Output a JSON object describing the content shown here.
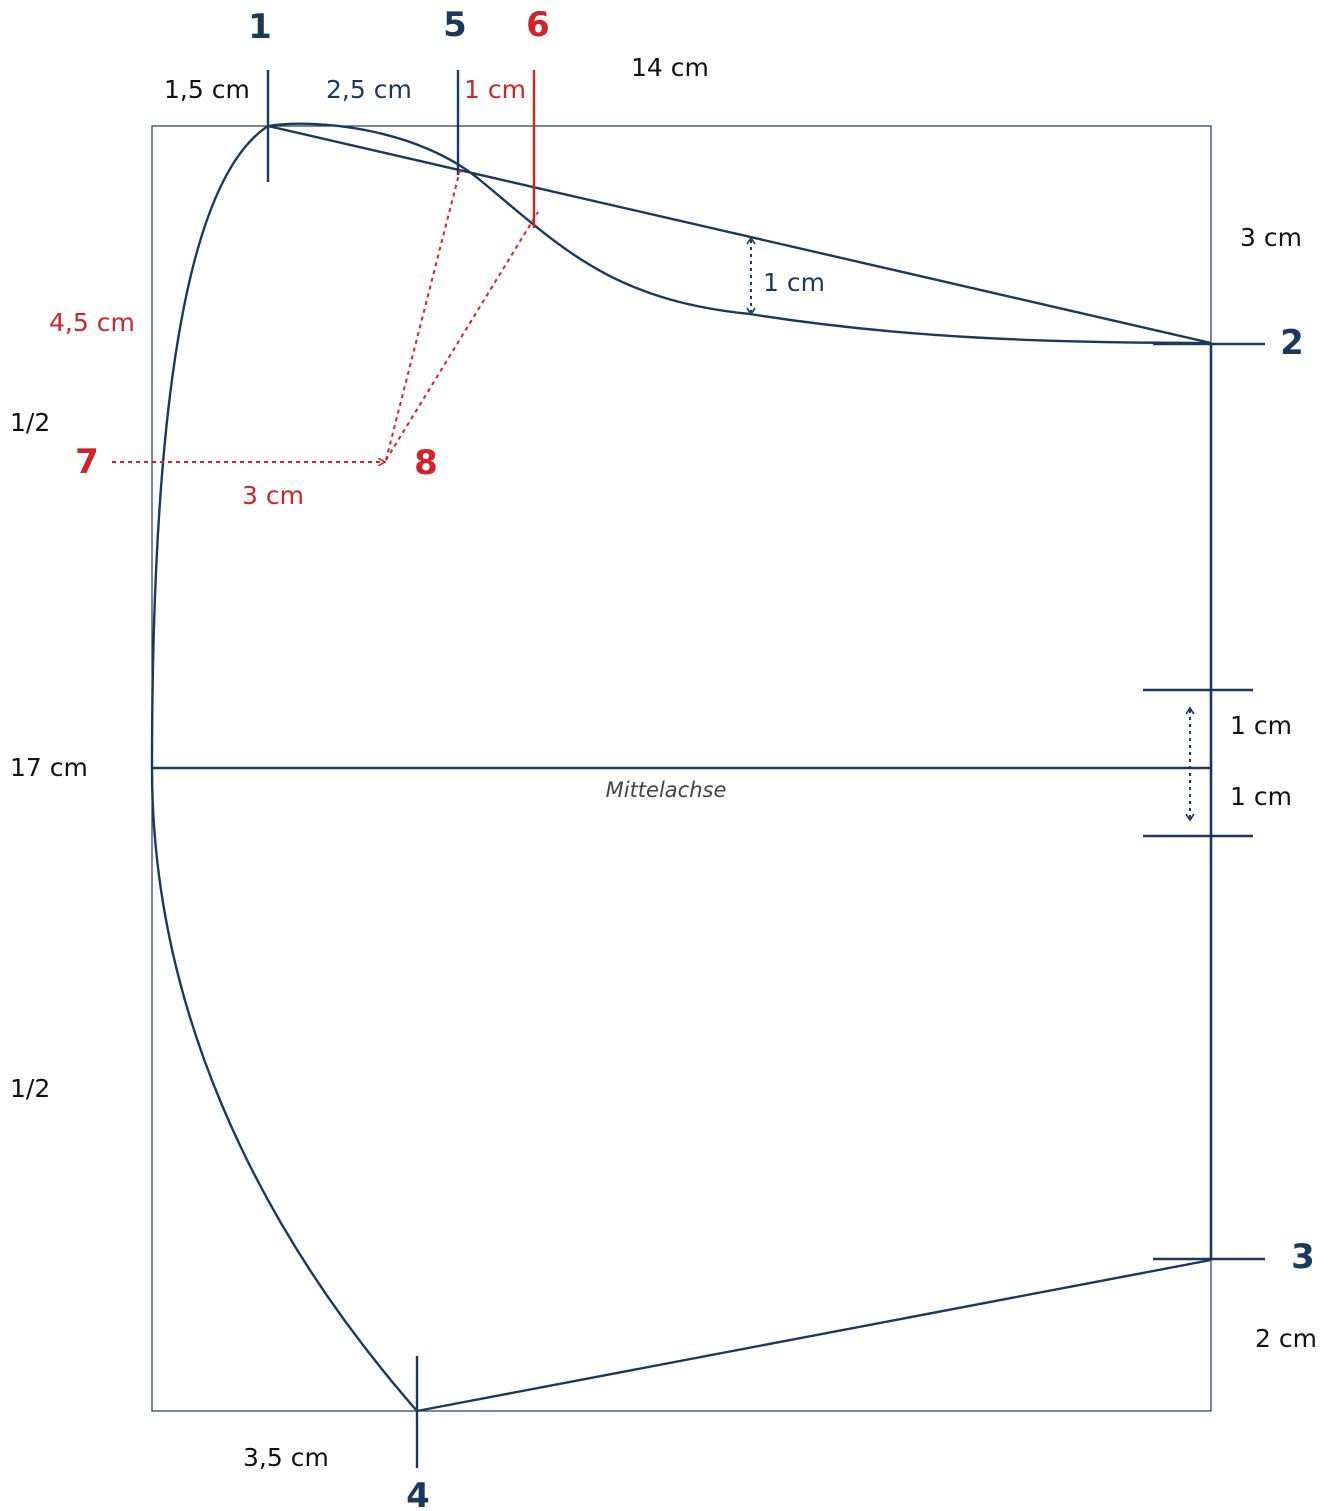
{
  "colors": {
    "navy": "#1b3a5a",
    "red": "#d2232a",
    "text": "#111111"
  },
  "points": {
    "p1": "1",
    "p2": "2",
    "p3": "3",
    "p4": "4",
    "p5": "5",
    "p6": "6",
    "p7": "7",
    "p8": "8"
  },
  "dimensions": {
    "top_left": "1,5 cm",
    "top_mid": "2,5 cm",
    "top_red": "1 cm",
    "width": "14 cm",
    "right_top": "3 cm",
    "curve_depth": "1 cm",
    "left_red": "4,5 cm",
    "half_upper": "1/2",
    "red_horizontal": "3 cm",
    "height": "17 cm",
    "center_up": "1 cm",
    "center_down": "1 cm",
    "half_lower": "1/2",
    "right_bottom": "2 cm",
    "bottom_left": "3,5 cm"
  },
  "center_axis_label": "Mittelachse"
}
